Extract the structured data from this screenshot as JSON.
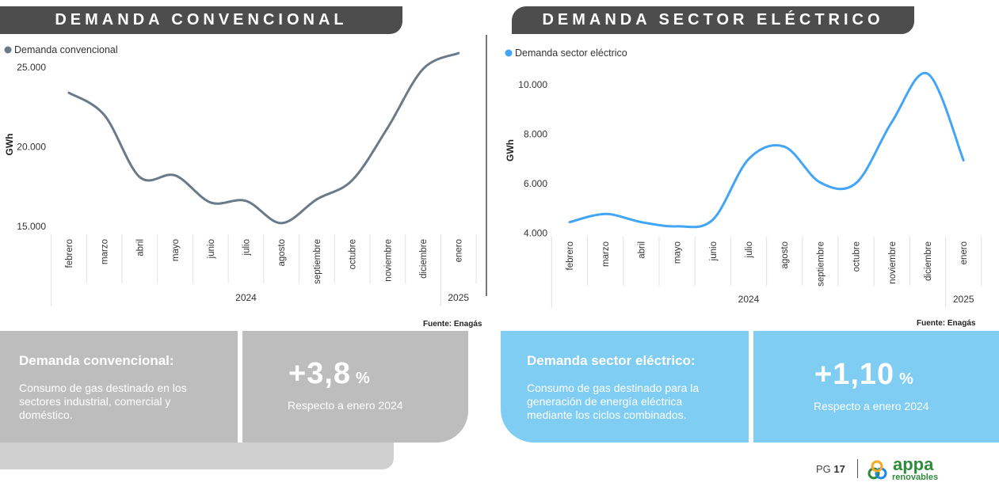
{
  "left": {
    "banner": "DEMANDA CONVENCIONAL",
    "legend": "Demanda convencional",
    "panel_title": "Demanda convencional:",
    "panel_desc": [
      "Consumo de gas destinado en los",
      "sectores industrial, comercial y",
      "doméstico."
    ],
    "pct_value": "+3,8",
    "pct_symbol": "%",
    "pct_sub": "Respecto a enero 2024",
    "source": "Fuente: Enagás"
  },
  "right": {
    "banner": "DEMANDA SECTOR ELÉCTRICO",
    "legend": "Demanda sector eléctrico",
    "panel_title": "Demanda sector eléctrico:",
    "panel_desc": [
      "Consumo de gas destinado para la",
      "generación de energía eléctrica",
      "mediante los ciclos combinados."
    ],
    "pct_value": "+1,10",
    "pct_symbol": "%",
    "pct_sub": "Respecto a enero 2024",
    "source": "Fuente: Enagás"
  },
  "footer": {
    "page_label": "PG",
    "page_number": "17",
    "logo_main": "appa",
    "logo_sub": "renovables"
  },
  "colors": {
    "gray_series": "#6b7a89",
    "blue_series": "#42a5f5",
    "panel_gray": "#bdbdbd",
    "panel_blue": "#7fcdf3",
    "banner": "#4d4d4d"
  },
  "chart_data": [
    {
      "type": "line",
      "series": [
        {
          "name": "Demanda convencional",
          "values": [
            23400,
            22000,
            18100,
            18200,
            16500,
            16600,
            15200,
            16700,
            17900,
            21200,
            24900,
            25900
          ]
        }
      ],
      "categories": [
        "febrero",
        "marzo",
        "abril",
        "mayo",
        "junio",
        "julio",
        "agosto",
        "septiembre",
        "octubre",
        "noviembre",
        "diciembre",
        "enero"
      ],
      "year_groups": [
        {
          "label": "2024",
          "count": 11
        },
        {
          "label": "2025",
          "count": 1
        }
      ],
      "ylabel": "GWh",
      "yticks": [
        15000,
        20000,
        25000
      ],
      "ytick_labels": [
        "15.000",
        "20.000",
        "25.000"
      ],
      "ylim": [
        13500,
        26800
      ],
      "legend_position": "top-left",
      "grid": false
    },
    {
      "type": "line",
      "series": [
        {
          "name": "Demanda sector eléctrico",
          "values": [
            4450,
            4780,
            4450,
            4280,
            4550,
            7000,
            7500,
            6050,
            6030,
            8500,
            10450,
            6950
          ]
        }
      ],
      "categories": [
        "febrero",
        "marzo",
        "abril",
        "mayo",
        "junio",
        "julio",
        "agosto",
        "septiembre",
        "octubre",
        "noviembre",
        "diciembre",
        "enero"
      ],
      "year_groups": [
        {
          "label": "2024",
          "count": 11
        },
        {
          "label": "2025",
          "count": 1
        }
      ],
      "ylabel": "GWh",
      "yticks": [
        4000,
        6000,
        8000,
        10000
      ],
      "ytick_labels": [
        "4.000",
        "6.000",
        "8.000",
        "10.000"
      ],
      "ylim": [
        3700,
        11000
      ],
      "legend_position": "top-left",
      "grid": false
    }
  ]
}
